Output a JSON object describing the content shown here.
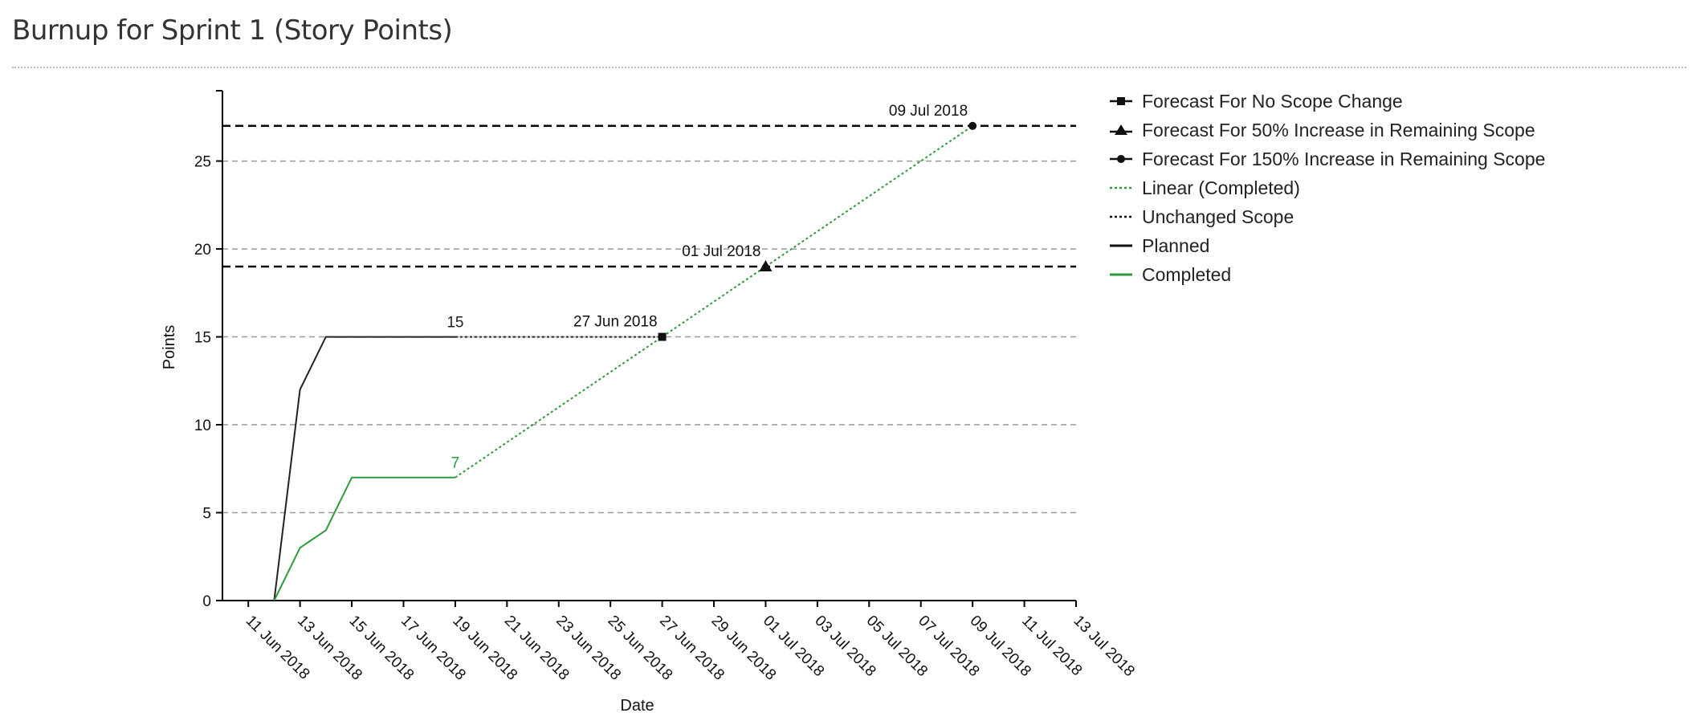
{
  "page": {
    "title": "Burnup for Sprint 1 (Story Points)"
  },
  "chart_data": {
    "type": "line",
    "x_axis": {
      "label": "Date",
      "type": "date",
      "range": [
        "2018-06-10",
        "2018-07-13"
      ],
      "ticks": [
        "2018-06-11",
        "2018-06-13",
        "2018-06-15",
        "2018-06-17",
        "2018-06-19",
        "2018-06-21",
        "2018-06-23",
        "2018-06-25",
        "2018-06-27",
        "2018-06-29",
        "2018-07-01",
        "2018-07-03",
        "2018-07-05",
        "2018-07-07",
        "2018-07-09",
        "2018-07-11",
        "2018-07-13"
      ],
      "tick_labels": [
        "11 Jun 2018",
        "13 Jun 2018",
        "15 Jun 2018",
        "17 Jun 2018",
        "19 Jun 2018",
        "21 Jun 2018",
        "23 Jun 2018",
        "25 Jun 2018",
        "27 Jun 2018",
        "29 Jun 2018",
        "01 Jul 2018",
        "03 Jul 2018",
        "05 Jul 2018",
        "07 Jul 2018",
        "09 Jul 2018",
        "11 Jul 2018",
        "13 Jul 2018"
      ]
    },
    "y_axis": {
      "label": "Points",
      "range": [
        0,
        29
      ],
      "ticks": [
        0,
        5,
        10,
        15,
        20,
        25
      ],
      "grid": "dashed horizontal"
    },
    "legend_position": "right",
    "series": [
      {
        "name": "Planned",
        "style": "solid",
        "color": "#222222",
        "points": [
          [
            "2018-06-12",
            0
          ],
          [
            "2018-06-13",
            12
          ],
          [
            "2018-06-14",
            15
          ],
          [
            "2018-06-19",
            15
          ]
        ],
        "end_label": "15"
      },
      {
        "name": "Completed",
        "style": "solid",
        "color": "#2e9a3c",
        "points": [
          [
            "2018-06-12",
            0
          ],
          [
            "2018-06-13",
            3
          ],
          [
            "2018-06-14",
            4
          ],
          [
            "2018-06-15",
            7
          ],
          [
            "2018-06-19",
            7
          ]
        ],
        "end_label": "7"
      },
      {
        "name": "Unchanged Scope",
        "style": "dotted",
        "color": "#222222",
        "points": [
          [
            "2018-06-19",
            15
          ],
          [
            "2018-06-27",
            15
          ]
        ]
      },
      {
        "name": "Linear (Completed)",
        "style": "dotted",
        "color": "#2e9a3c",
        "points": [
          [
            "2018-06-19",
            7
          ],
          [
            "2018-07-09",
            27
          ]
        ]
      }
    ],
    "forecasts": [
      {
        "name": "Forecast For No Scope Change",
        "marker": "square",
        "scope": 15,
        "date": "2018-06-27",
        "label": "27 Jun 2018",
        "scope_line": false
      },
      {
        "name": "Forecast For 50% Increase in Remaining Scope",
        "marker": "triangle",
        "scope": 19,
        "date": "2018-07-01",
        "label": "01 Jul 2018",
        "scope_line": true
      },
      {
        "name": "Forecast For 150% Increase in Remaining Scope",
        "marker": "circle",
        "scope": 27,
        "date": "2018-07-09",
        "label": "09 Jul 2018",
        "scope_line": true
      }
    ],
    "legend": [
      {
        "label": "Forecast For No Scope Change",
        "symbol": "square"
      },
      {
        "label": "Forecast For 50% Increase in Remaining Scope",
        "symbol": "triangle"
      },
      {
        "label": "Forecast For 150% Increase in Remaining Scope",
        "symbol": "circle"
      },
      {
        "label": "Linear (Completed)",
        "symbol": "dotted-green"
      },
      {
        "label": "Unchanged Scope",
        "symbol": "dotted-black"
      },
      {
        "label": "Planned",
        "symbol": "line-black"
      },
      {
        "label": "Completed",
        "symbol": "line-green"
      }
    ]
  }
}
